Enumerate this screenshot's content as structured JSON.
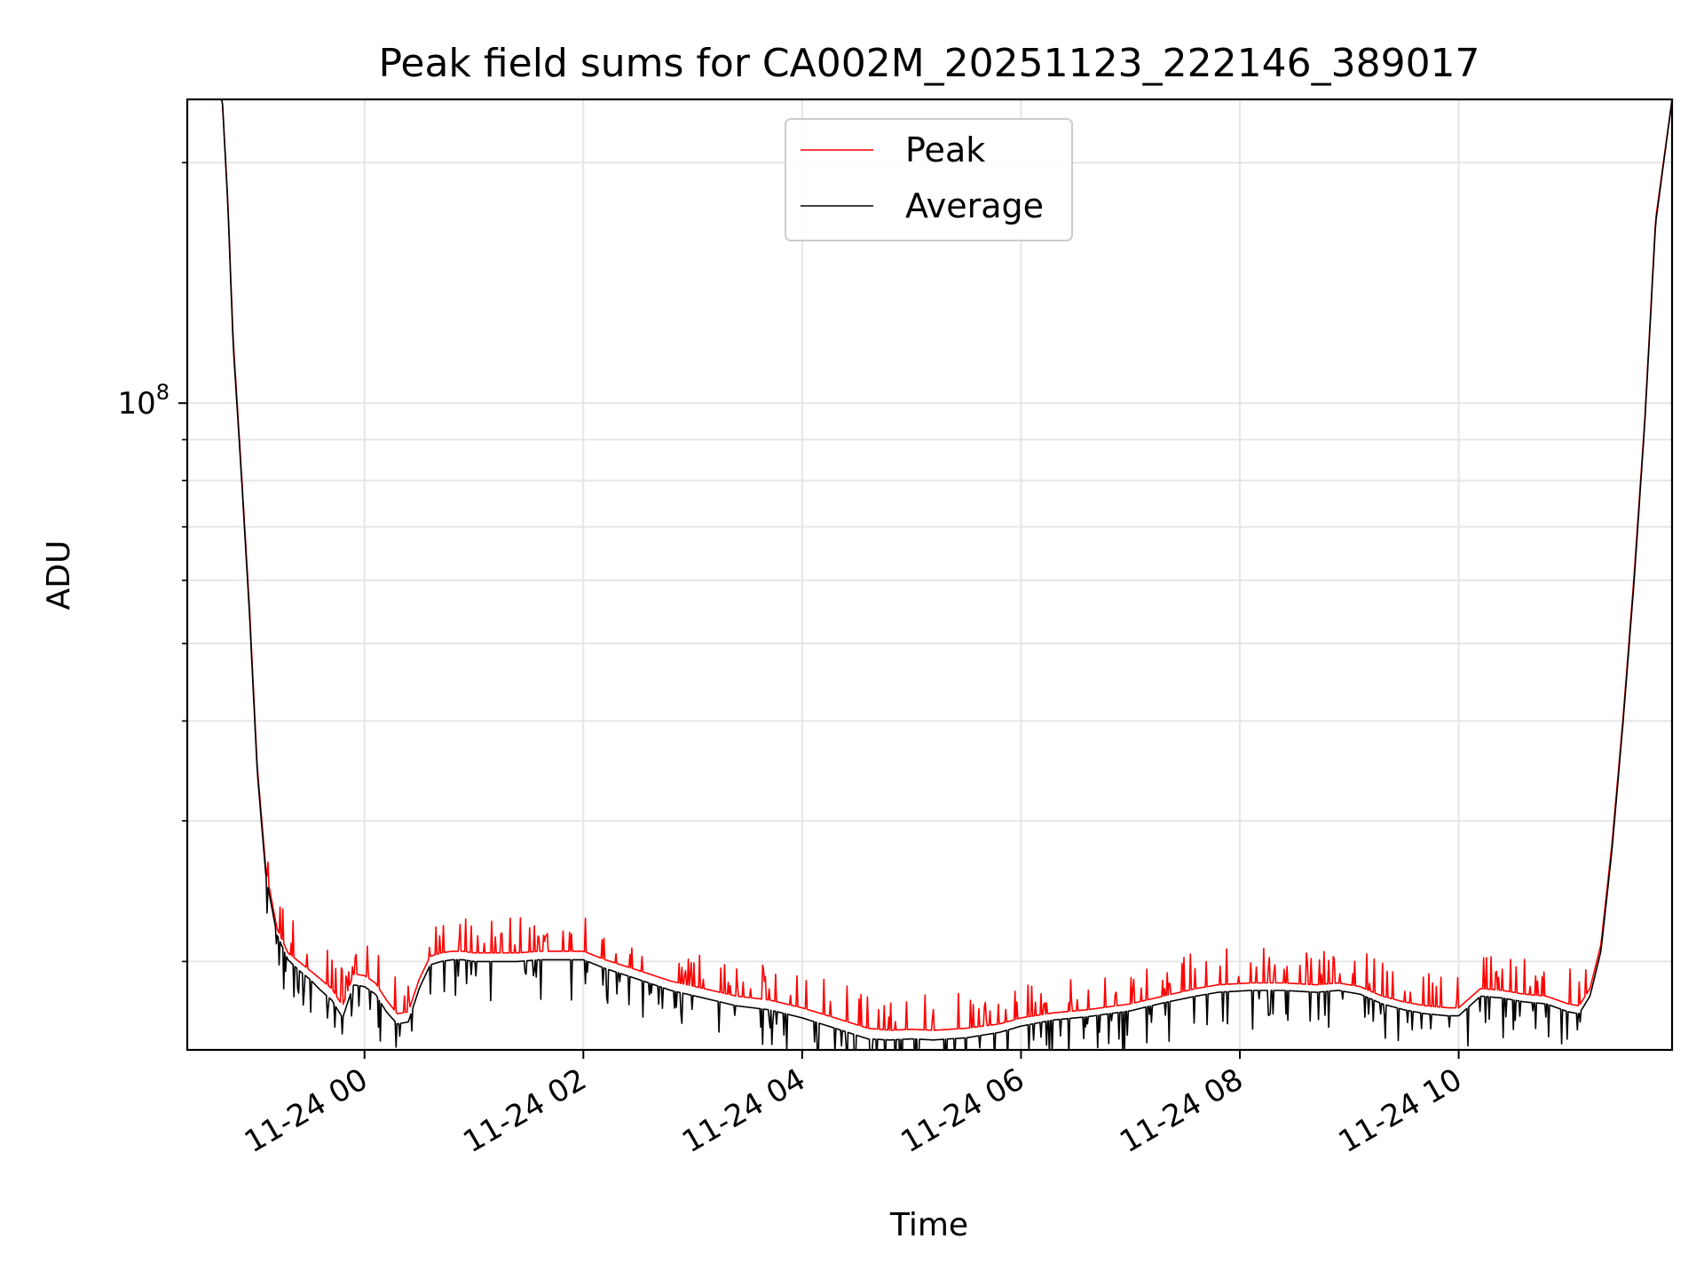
{
  "chart_data": {
    "type": "line",
    "title": "Peak field sums for CA002M_20251123_222146_389017",
    "xlabel": "Time",
    "ylabel": "ADU",
    "yscale": "log",
    "ylim": [
      15500000,
      240000000
    ],
    "xlim_hours": [
      -1.62,
      11.95
    ],
    "y_major_tick": {
      "value": 100000000,
      "label_base": "10",
      "label_exp": "8"
    },
    "y_minor_ticks": [
      20000000,
      30000000,
      40000000,
      50000000,
      60000000,
      70000000,
      80000000,
      90000000,
      200000000
    ],
    "x_ticks": [
      {
        "hours": 0,
        "label": "11-24 00"
      },
      {
        "hours": 2,
        "label": "11-24 02"
      },
      {
        "hours": 4,
        "label": "11-24 04"
      },
      {
        "hours": 6,
        "label": "11-24 06"
      },
      {
        "hours": 8,
        "label": "11-24 08"
      },
      {
        "hours": 10,
        "label": "11-24 10"
      }
    ],
    "grid": true,
    "legend_position": "top-center",
    "series": [
      {
        "name": "Peak",
        "color": "#ff0000",
        "x_hours": [
          -1.62,
          -1.3,
          -1.25,
          -1.2,
          -1.12,
          -1.05,
          -0.98,
          -0.9,
          -0.8,
          -0.7,
          -0.6,
          -0.5,
          -0.4,
          -0.3,
          -0.2,
          -0.1,
          0.0,
          0.1,
          0.2,
          0.3,
          0.4,
          0.5,
          0.6,
          0.7,
          0.8,
          0.9,
          1.0,
          1.2,
          1.4,
          1.6,
          1.8,
          2.0,
          2.2,
          2.5,
          2.8,
          3.1,
          3.4,
          3.7,
          4.0,
          4.3,
          4.6,
          4.8,
          5.0,
          5.2,
          5.5,
          5.8,
          6.0,
          6.3,
          6.6,
          7.0,
          7.3,
          7.6,
          7.8,
          8.1,
          8.4,
          8.7,
          8.9,
          9.1,
          9.3,
          9.5,
          9.7,
          9.9,
          10.0,
          10.2,
          10.4,
          10.6,
          10.8,
          11.0,
          11.1,
          11.2,
          11.3,
          11.4,
          11.5,
          11.6,
          11.7,
          11.8,
          11.95
        ],
        "values": [
          240000000,
          240000000,
          180000000,
          120000000,
          80000000,
          55000000,
          35000000,
          26000000,
          22000000,
          20500000,
          20000000,
          19500000,
          19000000,
          18500000,
          17600000,
          19300000,
          19200000,
          18800000,
          17900000,
          17200000,
          17300000,
          19000000,
          20300000,
          20500000,
          20600000,
          20600000,
          20500000,
          20500000,
          20500000,
          20600000,
          20600000,
          20600000,
          20100000,
          19500000,
          18900000,
          18500000,
          18100000,
          17900000,
          17500000,
          17000000,
          16500000,
          16400000,
          16450000,
          16400000,
          16500000,
          16700000,
          17000000,
          17250000,
          17400000,
          17700000,
          18100000,
          18500000,
          18700000,
          18800000,
          18800000,
          18700000,
          18800000,
          18600000,
          18100000,
          17800000,
          17600000,
          17500000,
          17500000,
          18500000,
          18400000,
          18200000,
          18100000,
          17700000,
          17600000,
          18500000,
          21000000,
          28000000,
          40000000,
          60000000,
          95000000,
          170000000,
          240000000
        ]
      },
      {
        "name": "Average",
        "color": "#000000",
        "x_hours": [
          -1.62,
          -1.3,
          -1.25,
          -1.2,
          -1.12,
          -1.05,
          -0.98,
          -0.9,
          -0.8,
          -0.7,
          -0.6,
          -0.5,
          -0.4,
          -0.3,
          -0.2,
          -0.1,
          0.0,
          0.1,
          0.2,
          0.3,
          0.4,
          0.5,
          0.6,
          0.7,
          0.8,
          0.9,
          1.0,
          1.2,
          1.4,
          1.6,
          1.8,
          2.0,
          2.2,
          2.5,
          2.8,
          3.1,
          3.4,
          3.7,
          4.0,
          4.3,
          4.6,
          4.8,
          5.0,
          5.2,
          5.5,
          5.8,
          6.0,
          6.3,
          6.6,
          7.0,
          7.3,
          7.6,
          7.8,
          8.1,
          8.4,
          8.7,
          8.9,
          9.1,
          9.3,
          9.5,
          9.7,
          9.9,
          10.0,
          10.2,
          10.4,
          10.6,
          10.8,
          11.0,
          11.1,
          11.2,
          11.3,
          11.4,
          11.5,
          11.6,
          11.7,
          11.8,
          11.95
        ],
        "values": [
          240000000,
          240000000,
          178000000,
          118000000,
          79000000,
          54000000,
          34500000,
          25500000,
          21600000,
          20100000,
          19500000,
          19000000,
          18400000,
          17900000,
          17000000,
          18700000,
          18600000,
          18200000,
          17300000,
          16700000,
          16800000,
          18500000,
          19800000,
          20000000,
          20100000,
          20100000,
          20000000,
          20000000,
          20000000,
          20100000,
          20100000,
          20100000,
          19600000,
          19000000,
          18400000,
          18000000,
          17600000,
          17400000,
          17000000,
          16500000,
          16000000,
          15950000,
          16000000,
          15950000,
          16050000,
          16300000,
          16600000,
          16900000,
          17050000,
          17350000,
          17750000,
          18100000,
          18300000,
          18400000,
          18400000,
          18300000,
          18400000,
          18200000,
          17700000,
          17400000,
          17200000,
          17100000,
          17100000,
          18100000,
          18000000,
          17800000,
          17700000,
          17300000,
          17200000,
          18100000,
          20600000,
          27500000,
          39500000,
          59000000,
          94000000,
          168000000,
          240000000
        ]
      }
    ]
  }
}
